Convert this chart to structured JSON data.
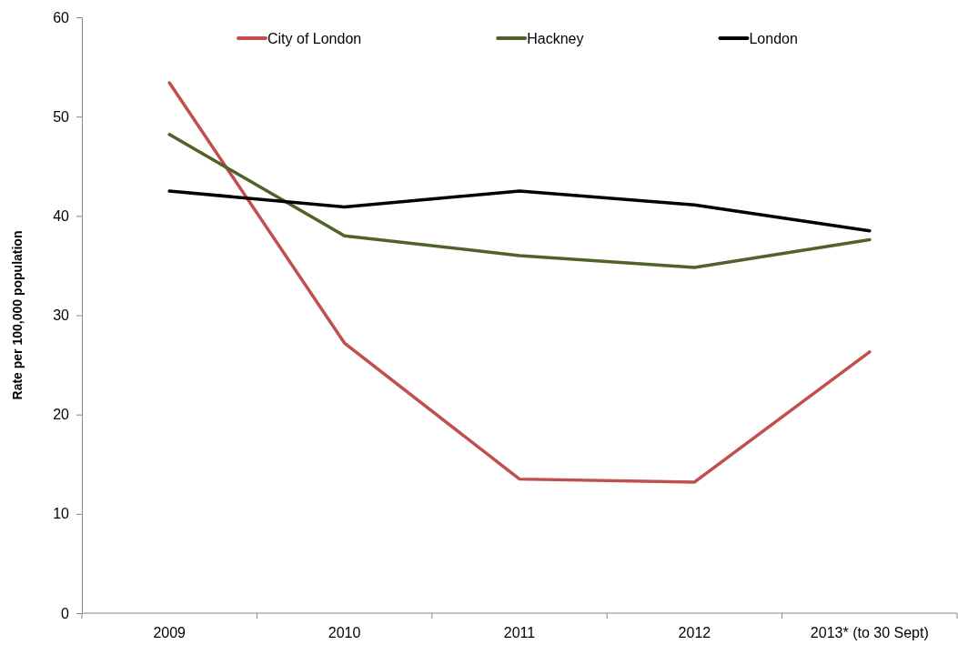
{
  "chart_data": {
    "type": "line",
    "ylabel": "Rate per 100,000 population",
    "categories": [
      "2009",
      "2010",
      "2011",
      "2012",
      "2013* (to 30 Sept)"
    ],
    "series": [
      {
        "name": "City of London",
        "color": "#c0504d",
        "values": [
          53.4,
          27.2,
          13.5,
          13.2,
          26.3
        ]
      },
      {
        "name": "Hackney",
        "color": "#4f6228",
        "values": [
          48.2,
          38.0,
          36.0,
          34.8,
          37.6
        ]
      },
      {
        "name": "London",
        "color": "#000000",
        "values": [
          42.5,
          40.9,
          42.5,
          41.1,
          38.5
        ]
      }
    ],
    "ylim": [
      0,
      60
    ],
    "yticks": [
      0,
      10,
      20,
      30,
      40,
      50,
      60
    ],
    "legend": "top",
    "line_style": "solid"
  }
}
